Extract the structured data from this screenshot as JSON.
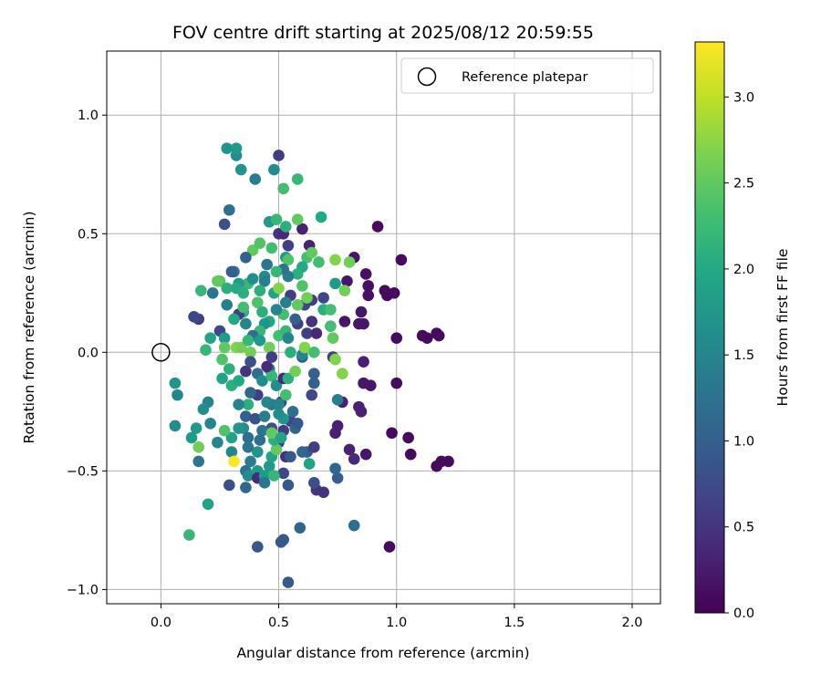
{
  "chart_data": {
    "type": "scatter",
    "title": "FOV centre drift starting at 2025/08/12 20:59:55",
    "xlabel": "Angular distance from reference (arcmin)",
    "ylabel": "Rotation from reference (arcmin)",
    "xlim": [
      -0.23,
      2.12
    ],
    "ylim": [
      -1.06,
      1.27
    ],
    "xticks": [
      "0.0",
      "0.5",
      "1.0",
      "1.5",
      "2.0"
    ],
    "xtick_values": [
      0.0,
      0.5,
      1.0,
      1.5,
      2.0
    ],
    "yticks": [
      "−1.0",
      "−0.5",
      "0.0",
      "0.5",
      "1.0"
    ],
    "ytick_values": [
      -1.0,
      -0.5,
      0.0,
      0.5,
      1.0
    ],
    "grid": true,
    "legend": {
      "placement": "top-right",
      "entries": [
        "Reference platepar"
      ]
    },
    "reference_point": {
      "x": 0.0,
      "y": 0.0
    },
    "colorbar": {
      "label": "Hours from first FF file",
      "colormap": "viridis",
      "range": [
        0.0,
        3.32
      ],
      "ticks": [
        "0.0",
        "0.5",
        "1.0",
        "1.5",
        "2.0",
        "2.5",
        "3.0"
      ],
      "tick_values": [
        0.0,
        0.5,
        1.0,
        1.5,
        2.0,
        2.5,
        3.0
      ]
    },
    "points": [
      [
        0.97,
        -0.82,
        0.1
      ],
      [
        0.98,
        -0.34,
        0.1
      ],
      [
        1.05,
        -0.36,
        0.1
      ],
      [
        1.06,
        -0.43,
        0.1
      ],
      [
        1.17,
        -0.48,
        0.1
      ],
      [
        1.19,
        -0.46,
        0.1
      ],
      [
        1.22,
        -0.46,
        0.1
      ],
      [
        1.0,
        0.06,
        0.1
      ],
      [
        1.11,
        0.07,
        0.1
      ],
      [
        1.13,
        0.06,
        0.1
      ],
      [
        1.17,
        0.08,
        0.1
      ],
      [
        1.18,
        0.07,
        0.1
      ],
      [
        1.0,
        -0.13,
        0.1
      ],
      [
        0.92,
        0.53,
        0.1
      ],
      [
        1.02,
        0.39,
        0.1
      ],
      [
        0.95,
        0.26,
        0.1
      ],
      [
        0.99,
        0.25,
        0.1
      ],
      [
        0.96,
        0.24,
        0.1
      ],
      [
        0.87,
        0.33,
        0.15
      ],
      [
        0.88,
        0.28,
        0.15
      ],
      [
        0.88,
        0.24,
        0.15
      ],
      [
        0.82,
        0.4,
        0.2
      ],
      [
        0.79,
        0.3,
        0.2
      ],
      [
        0.85,
        0.17,
        0.2
      ],
      [
        0.86,
        0.12,
        0.2
      ],
      [
        0.84,
        0.12,
        0.2
      ],
      [
        0.78,
        0.13,
        0.2
      ],
      [
        0.86,
        -0.04,
        0.3
      ],
      [
        0.86,
        -0.13,
        0.2
      ],
      [
        0.89,
        -0.14,
        0.2
      ],
      [
        0.84,
        -0.23,
        0.3
      ],
      [
        0.85,
        -0.25,
        0.3
      ],
      [
        0.77,
        -0.21,
        0.3
      ],
      [
        0.75,
        -0.31,
        0.3
      ],
      [
        0.74,
        -0.34,
        0.3
      ],
      [
        0.8,
        -0.41,
        0.3
      ],
      [
        0.82,
        -0.45,
        0.4
      ],
      [
        0.87,
        -0.43,
        0.2
      ],
      [
        0.69,
        -0.59,
        0.5
      ],
      [
        0.66,
        -0.58,
        0.5
      ],
      [
        0.54,
        -0.97,
        0.9
      ],
      [
        0.52,
        -0.79,
        0.9
      ],
      [
        0.51,
        -0.8,
        0.9
      ],
      [
        0.41,
        -0.82,
        0.9
      ],
      [
        0.59,
        -0.74,
        1.1
      ],
      [
        0.82,
        -0.73,
        1.2
      ],
      [
        0.65,
        -0.55,
        0.8
      ],
      [
        0.54,
        -0.56,
        0.9
      ],
      [
        0.75,
        -0.53,
        1.0
      ],
      [
        0.74,
        -0.49,
        1.1
      ],
      [
        0.62,
        -0.42,
        0.9
      ],
      [
        0.65,
        -0.4,
        0.6
      ],
      [
        0.5,
        -0.38,
        0.6
      ],
      [
        0.53,
        -0.44,
        0.5
      ],
      [
        0.52,
        -0.33,
        0.6
      ],
      [
        0.55,
        -0.29,
        0.7
      ],
      [
        0.56,
        -0.25,
        1.2
      ],
      [
        0.51,
        -0.21,
        0.7
      ],
      [
        0.64,
        -0.18,
        0.7
      ],
      [
        0.65,
        -0.13,
        1.0
      ],
      [
        0.65,
        -0.09,
        1.0
      ],
      [
        0.6,
        -0.02,
        0.9
      ],
      [
        0.62,
        0.08,
        0.6
      ],
      [
        0.58,
        0.12,
        0.6
      ],
      [
        0.61,
        0.2,
        0.7
      ],
      [
        0.64,
        0.13,
        0.5
      ],
      [
        0.64,
        0.22,
        0.6
      ],
      [
        0.69,
        0.23,
        0.7
      ],
      [
        0.66,
        0.08,
        0.4
      ],
      [
        0.6,
        0.52,
        0.3
      ],
      [
        0.63,
        0.45,
        0.3
      ],
      [
        0.54,
        0.45,
        0.6
      ],
      [
        0.5,
        0.5,
        0.5
      ],
      [
        0.52,
        0.5,
        0.4
      ],
      [
        0.5,
        0.83,
        0.6
      ],
      [
        0.48,
        0.77,
        1.6
      ],
      [
        0.52,
        0.69,
        2.3
      ],
      [
        0.58,
        0.73,
        2.2
      ],
      [
        0.4,
        0.73,
        1.4
      ],
      [
        0.34,
        0.77,
        1.7
      ],
      [
        0.32,
        0.83,
        1.6
      ],
      [
        0.28,
        0.86,
        1.7
      ],
      [
        0.32,
        0.86,
        1.8
      ],
      [
        0.46,
        0.55,
        1.8
      ],
      [
        0.49,
        0.56,
        2.2
      ],
      [
        0.53,
        0.53,
        2.1
      ],
      [
        0.58,
        0.56,
        2.5
      ],
      [
        0.68,
        0.57,
        2.0
      ],
      [
        0.29,
        0.6,
        1.2
      ],
      [
        0.27,
        0.54,
        0.8
      ],
      [
        0.39,
        0.43,
        2.5
      ],
      [
        0.36,
        0.4,
        1.0
      ],
      [
        0.42,
        0.46,
        2.4
      ],
      [
        0.47,
        0.44,
        2.3
      ],
      [
        0.53,
        0.4,
        1.8
      ],
      [
        0.54,
        0.39,
        2.4
      ],
      [
        0.62,
        0.4,
        2.3
      ],
      [
        0.64,
        0.42,
        2.5
      ],
      [
        0.67,
        0.38,
        2.3
      ],
      [
        0.74,
        0.39,
        2.7
      ],
      [
        0.8,
        0.38,
        2.6
      ],
      [
        0.74,
        0.29,
        1.8
      ],
      [
        0.78,
        0.26,
        2.6
      ],
      [
        0.69,
        0.18,
        2.1
      ],
      [
        0.72,
        0.18,
        2.3
      ],
      [
        0.72,
        0.11,
        2.3
      ],
      [
        0.73,
        0.06,
        2.5
      ],
      [
        0.73,
        -0.02,
        0.6
      ],
      [
        0.74,
        -0.03,
        2.7
      ],
      [
        0.77,
        -0.09,
        2.7
      ],
      [
        0.75,
        -0.2,
        1.4
      ],
      [
        0.6,
        0.36,
        2.0
      ],
      [
        0.58,
        0.33,
        2.1
      ],
      [
        0.6,
        0.28,
        2.4
      ],
      [
        0.62,
        0.23,
        2.6
      ],
      [
        0.54,
        0.32,
        1.4
      ],
      [
        0.52,
        0.35,
        1.3
      ],
      [
        0.49,
        0.34,
        2.2
      ],
      [
        0.45,
        0.37,
        1.3
      ],
      [
        0.44,
        0.32,
        1.6
      ],
      [
        0.44,
        0.3,
        1.4
      ],
      [
        0.42,
        0.26,
        2.1
      ],
      [
        0.37,
        0.29,
        2.2
      ],
      [
        0.33,
        0.29,
        1.8
      ],
      [
        0.31,
        0.34,
        1.3
      ],
      [
        0.3,
        0.34,
        1.0
      ],
      [
        0.25,
        0.3,
        2.4
      ],
      [
        0.24,
        0.3,
        2.5
      ],
      [
        0.17,
        0.26,
        2.2
      ],
      [
        0.22,
        0.25,
        1.3
      ],
      [
        0.28,
        0.27,
        2.1
      ],
      [
        0.32,
        0.27,
        2.0
      ],
      [
        0.35,
        0.25,
        2.1
      ],
      [
        0.39,
        0.31,
        1.6
      ],
      [
        0.41,
        0.21,
        2.4
      ],
      [
        0.43,
        0.17,
        2.1
      ],
      [
        0.48,
        0.25,
        1.9
      ],
      [
        0.5,
        0.27,
        2.7
      ],
      [
        0.55,
        0.24,
        0.6
      ],
      [
        0.53,
        0.21,
        1.4
      ],
      [
        0.58,
        0.2,
        2.5
      ],
      [
        0.57,
        0.14,
        1.0
      ],
      [
        0.52,
        0.16,
        2.3
      ],
      [
        0.49,
        0.18,
        1.5
      ],
      [
        0.46,
        0.13,
        2.0
      ],
      [
        0.44,
        0.12,
        1.7
      ],
      [
        0.42,
        0.09,
        2.2
      ],
      [
        0.39,
        0.07,
        1.2
      ],
      [
        0.36,
        0.12,
        1.5
      ],
      [
        0.35,
        0.17,
        2.1
      ],
      [
        0.33,
        0.16,
        0.6
      ],
      [
        0.35,
        0.19,
        2.3
      ],
      [
        0.31,
        0.14,
        2.0
      ],
      [
        0.28,
        0.2,
        1.4
      ],
      [
        0.25,
        0.09,
        0.7
      ],
      [
        0.27,
        0.06,
        1.8
      ],
      [
        0.21,
        0.06,
        1.9
      ],
      [
        0.16,
        0.14,
        0.6
      ],
      [
        0.14,
        0.15,
        0.7
      ],
      [
        0.19,
        0.01,
        2.2
      ],
      [
        0.27,
        0.02,
        2.5
      ],
      [
        0.32,
        0.02,
        2.7
      ],
      [
        0.34,
        0.02,
        2.6
      ],
      [
        0.37,
        0.05,
        2.2
      ],
      [
        0.38,
        0.0,
        2.6
      ],
      [
        0.42,
        0.05,
        1.8
      ],
      [
        0.46,
        0.02,
        2.6
      ],
      [
        0.5,
        0.07,
        2.3
      ],
      [
        0.53,
        0.09,
        2.2
      ],
      [
        0.54,
        0.06,
        1.5
      ],
      [
        0.55,
        -0.0,
        2.1
      ],
      [
        0.6,
        -0.01,
        1.5
      ],
      [
        0.61,
        0.02,
        2.7
      ],
      [
        0.65,
        0.0,
        2.3
      ],
      [
        0.26,
        -0.03,
        2.4
      ],
      [
        0.29,
        -0.07,
        2.1
      ],
      [
        0.26,
        -0.11,
        1.9
      ],
      [
        0.3,
        -0.14,
        2.1
      ],
      [
        0.33,
        -0.12,
        2.0
      ],
      [
        0.36,
        -0.08,
        0.5
      ],
      [
        0.38,
        -0.04,
        0.8
      ],
      [
        0.41,
        -0.09,
        1.2
      ],
      [
        0.43,
        -0.12,
        1.6
      ],
      [
        0.46,
        -0.07,
        1.3
      ],
      [
        0.47,
        -0.1,
        2.2
      ],
      [
        0.49,
        -0.14,
        1.6
      ],
      [
        0.52,
        -0.11,
        0.4
      ],
      [
        0.54,
        -0.11,
        2.1
      ],
      [
        0.57,
        -0.08,
        2.6
      ],
      [
        0.53,
        -0.18,
        2.3
      ],
      [
        0.47,
        -0.22,
        1.3
      ],
      [
        0.45,
        -0.21,
        1.5
      ],
      [
        0.41,
        -0.18,
        0.6
      ],
      [
        0.37,
        -0.22,
        2.1
      ],
      [
        0.33,
        -0.22,
        1.5
      ],
      [
        0.38,
        -0.17,
        1.1
      ],
      [
        0.36,
        -0.27,
        1.0
      ],
      [
        0.35,
        -0.32,
        1.6
      ],
      [
        0.33,
        -0.32,
        1.7
      ],
      [
        0.3,
        -0.36,
        1.9
      ],
      [
        0.27,
        -0.33,
        2.4
      ],
      [
        0.21,
        -0.3,
        1.5
      ],
      [
        0.2,
        -0.21,
        1.5
      ],
      [
        0.18,
        -0.24,
        1.6
      ],
      [
        0.15,
        -0.32,
        1.8
      ],
      [
        0.13,
        -0.36,
        1.8
      ],
      [
        0.06,
        -0.13,
        1.7
      ],
      [
        0.07,
        -0.18,
        1.5
      ],
      [
        0.06,
        -0.31,
        1.6
      ],
      [
        0.16,
        -0.4,
        2.6
      ],
      [
        0.16,
        -0.46,
        1.3
      ],
      [
        0.24,
        -0.38,
        1.5
      ],
      [
        0.3,
        -0.42,
        1.5
      ],
      [
        0.31,
        -0.46,
        3.3
      ],
      [
        0.36,
        -0.5,
        1.2
      ],
      [
        0.37,
        -0.52,
        1.6
      ],
      [
        0.36,
        -0.57,
        1.1
      ],
      [
        0.29,
        -0.56,
        0.8
      ],
      [
        0.2,
        -0.64,
        1.9
      ],
      [
        0.12,
        -0.77,
        2.2
      ],
      [
        0.37,
        -0.36,
        1.2
      ],
      [
        0.41,
        -0.42,
        1.7
      ],
      [
        0.41,
        -0.5,
        1.8
      ],
      [
        0.41,
        -0.53,
        0.4
      ],
      [
        0.44,
        -0.52,
        1.8
      ],
      [
        0.46,
        -0.48,
        1.8
      ],
      [
        0.47,
        -0.44,
        1.9
      ],
      [
        0.49,
        -0.41,
        2.5
      ],
      [
        0.48,
        -0.37,
        2.1
      ],
      [
        0.47,
        -0.32,
        0.8
      ],
      [
        0.43,
        -0.33,
        1.3
      ],
      [
        0.4,
        -0.28,
        0.8
      ],
      [
        0.44,
        -0.27,
        1.4
      ],
      [
        0.47,
        -0.34,
        2.5
      ],
      [
        0.51,
        -0.36,
        1.9
      ],
      [
        0.52,
        -0.28,
        1.7
      ],
      [
        0.57,
        -0.32,
        1.1
      ],
      [
        0.52,
        -0.51,
        0.7
      ],
      [
        0.44,
        -0.55,
        1.3
      ],
      [
        0.48,
        -0.52,
        2.2
      ],
      [
        0.55,
        -0.44,
        0.9
      ],
      [
        0.6,
        -0.42,
        1.1
      ],
      [
        0.63,
        -0.47,
        1.9
      ],
      [
        0.38,
        -0.46,
        1.4
      ],
      [
        0.37,
        -0.4,
        1.3
      ],
      [
        0.45,
        -0.06,
        0.4
      ],
      [
        0.47,
        -0.02,
        0.6
      ],
      [
        0.5,
        -0.26,
        1.6
      ],
      [
        0.5,
        -0.22,
        1.5
      ],
      [
        0.42,
        -0.37,
        1.2
      ],
      [
        0.58,
        -0.3,
        0.9
      ]
    ],
    "point_unit_order": [
      "x",
      "y",
      "hours"
    ]
  }
}
